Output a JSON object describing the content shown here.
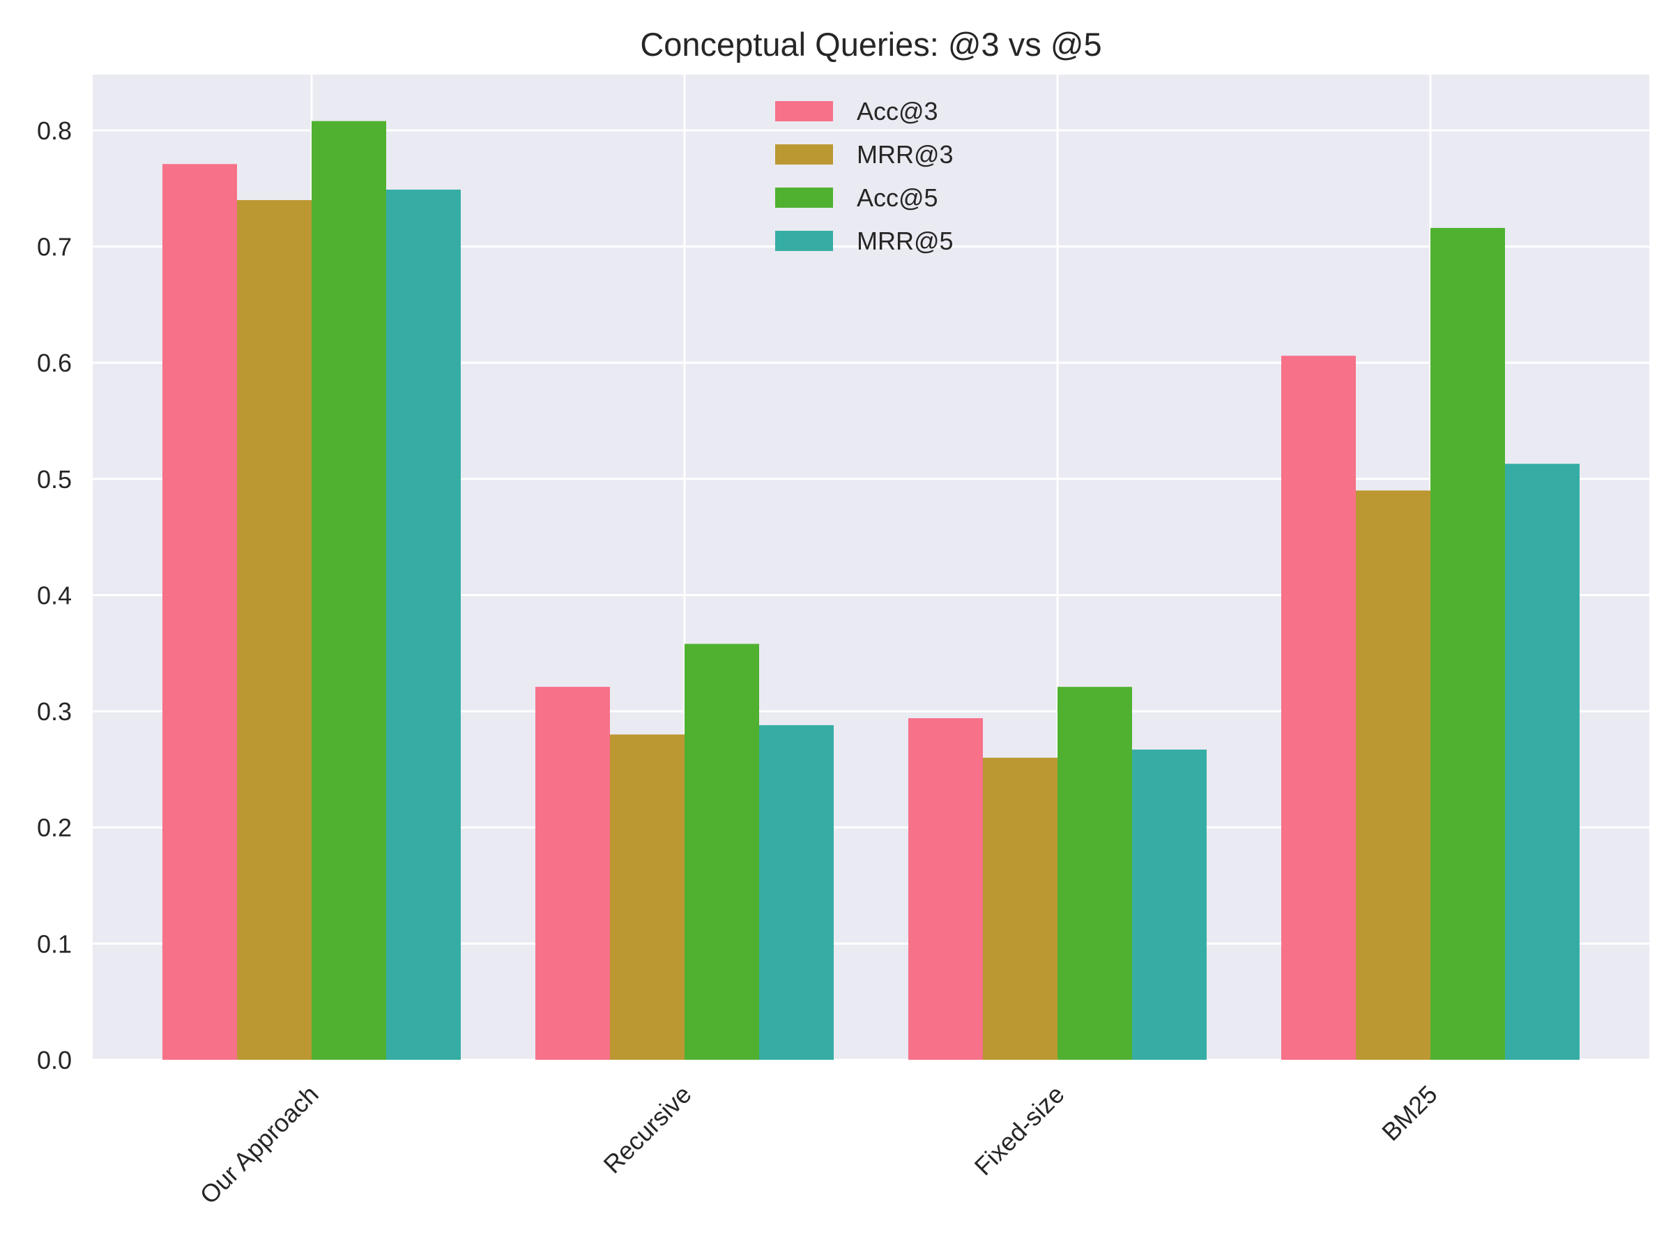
{
  "chart_data": {
    "type": "bar",
    "title": "Conceptual Queries: @3 vs @5",
    "xlabel": "",
    "ylabel": "",
    "categories": [
      "Our Approach",
      "Recursive",
      "Fixed-size",
      "BM25"
    ],
    "series": [
      {
        "name": "Acc@3",
        "color": "#f77189",
        "values": [
          0.771,
          0.321,
          0.294,
          0.606
        ]
      },
      {
        "name": "MRR@3",
        "color": "#bb9832",
        "values": [
          0.74,
          0.28,
          0.26,
          0.49
        ]
      },
      {
        "name": "Acc@5",
        "color": "#50b131",
        "values": [
          0.808,
          0.358,
          0.321,
          0.716
        ]
      },
      {
        "name": "MRR@5",
        "color": "#36ada4",
        "values": [
          0.749,
          0.288,
          0.267,
          0.513
        ]
      }
    ],
    "ylim": [
      0,
      0.848
    ],
    "yticks": [
      0.0,
      0.1,
      0.2,
      0.3,
      0.4,
      0.5,
      0.6,
      0.7,
      0.8
    ],
    "ytick_labels": [
      "0.0",
      "0.1",
      "0.2",
      "0.3",
      "0.4",
      "0.5",
      "0.6",
      "0.7",
      "0.8"
    ],
    "grid": true,
    "legend_position": "top-center",
    "background_color": "#eaeaf2",
    "grid_color": "#ffffff"
  }
}
